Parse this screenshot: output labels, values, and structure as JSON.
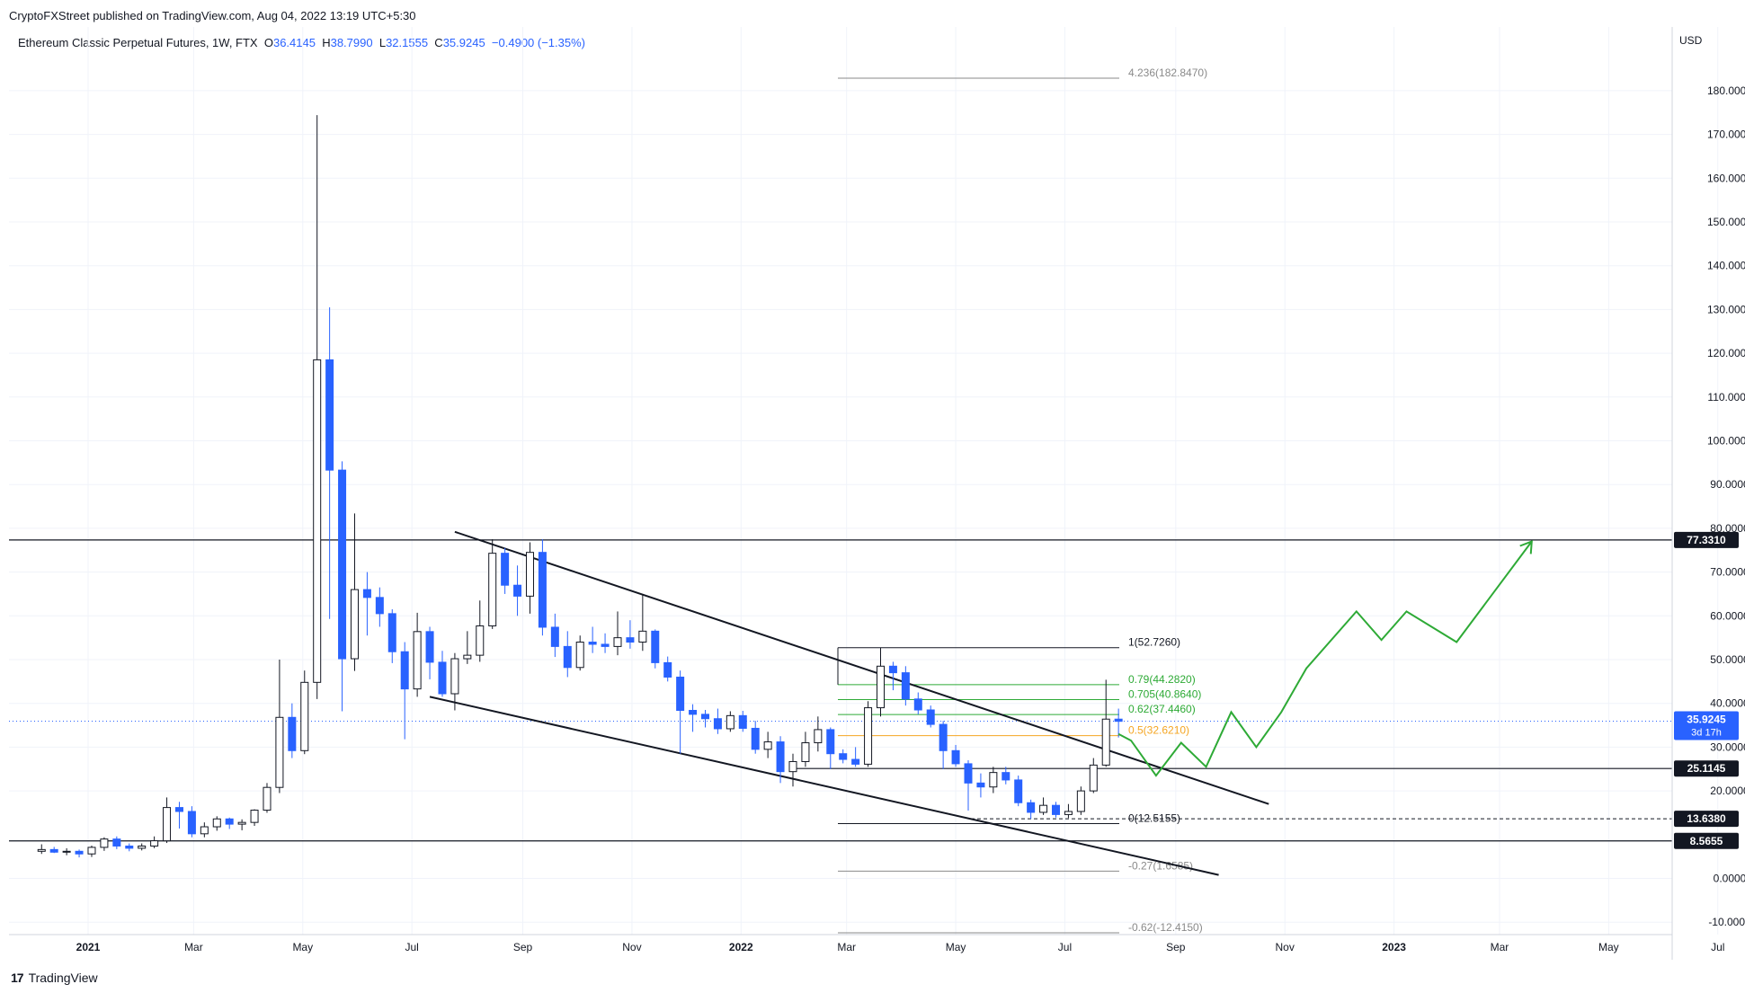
{
  "header": {
    "published": "CryptoFXStreet published on TradingView.com, Aug 04, 2022 13:19 UTC+5:30",
    "symbol": "Ethereum Classic Perpetual Futures, 1W, FTX",
    "open_label": "O",
    "open": "36.4145",
    "high_label": "H",
    "high": "38.7990",
    "low_label": "L",
    "low": "32.1555",
    "close_label": "C",
    "close": "35.9245",
    "change": "−0.4900 (−1.35%)",
    "currency": "USD"
  },
  "footer": {
    "brand": "TradingView"
  },
  "colors": {
    "up": "#ffffff",
    "down": "#2962ff",
    "border": "#131722",
    "projection": "#2eaa36",
    "fib_gold": "#f5a623",
    "fib_green": "#2eaa36",
    "fib_gray": "#8a8a8a"
  },
  "chart_data": {
    "type": "candlestick",
    "title": "",
    "timeframe": "1W",
    "yaxis": {
      "ticks": [
        "-10.0000",
        "0.0000",
        "20.0000",
        "30.0000",
        "40.0000",
        "50.0000",
        "60.0000",
        "70.0000",
        "80.0000",
        "90.0000",
        "100.0000",
        "110.0000",
        "120.0000",
        "130.0000",
        "140.0000",
        "150.0000",
        "160.0000",
        "170.0000",
        "180.0000"
      ],
      "tick_values": [
        -10,
        0,
        20,
        30,
        40,
        50,
        60,
        70,
        80,
        90,
        100,
        110,
        120,
        130,
        140,
        150,
        160,
        170,
        180
      ],
      "range": [
        -12,
        190
      ]
    },
    "xaxis": {
      "ticks": [
        "2021",
        "Mar",
        "May",
        "Jul",
        "Sep",
        "Nov",
        "2022",
        "Mar",
        "May",
        "Jul",
        "Sep",
        "Nov",
        "2023",
        "Mar",
        "May",
        "Jul"
      ],
      "tick_dates": [
        "2021-01-01",
        "2021-03-01",
        "2021-05-01",
        "2021-07-01",
        "2021-09-01",
        "2021-11-01",
        "2022-01-01",
        "2022-03-01",
        "2022-05-01",
        "2022-07-01",
        "2022-09-01",
        "2022-11-01",
        "2023-01-01",
        "2023-03-01",
        "2023-05-01",
        "2023-07-01"
      ],
      "range": [
        "2020-11-28",
        "2023-08-12"
      ]
    },
    "candles": [
      {
        "date": "2020-12-06",
        "o": 6.2,
        "h": 7.8,
        "l": 5.6,
        "c": 6.6
      },
      {
        "date": "2020-12-13",
        "o": 6.6,
        "h": 7.2,
        "l": 5.8,
        "c": 6.0
      },
      {
        "date": "2020-12-20",
        "o": 6.0,
        "h": 6.9,
        "l": 5.3,
        "c": 6.2
      },
      {
        "date": "2020-12-27",
        "o": 6.2,
        "h": 6.6,
        "l": 4.8,
        "c": 5.6
      },
      {
        "date": "2021-01-03",
        "o": 5.6,
        "h": 7.5,
        "l": 4.9,
        "c": 7.1
      },
      {
        "date": "2021-01-10",
        "o": 7.1,
        "h": 9.4,
        "l": 6.3,
        "c": 9.0
      },
      {
        "date": "2021-01-17",
        "o": 9.0,
        "h": 9.6,
        "l": 6.7,
        "c": 7.4
      },
      {
        "date": "2021-01-24",
        "o": 7.4,
        "h": 8.0,
        "l": 6.2,
        "c": 6.9
      },
      {
        "date": "2021-01-31",
        "o": 6.9,
        "h": 8.0,
        "l": 6.4,
        "c": 7.4
      },
      {
        "date": "2021-02-07",
        "o": 7.4,
        "h": 9.6,
        "l": 6.9,
        "c": 8.6
      },
      {
        "date": "2021-02-14",
        "o": 8.6,
        "h": 18.5,
        "l": 8.1,
        "c": 16.2
      },
      {
        "date": "2021-02-21",
        "o": 16.2,
        "h": 17.5,
        "l": 11.4,
        "c": 15.3
      },
      {
        "date": "2021-02-28",
        "o": 15.3,
        "h": 16.5,
        "l": 9.4,
        "c": 10.2
      },
      {
        "date": "2021-03-07",
        "o": 10.2,
        "h": 12.8,
        "l": 9.4,
        "c": 11.8
      },
      {
        "date": "2021-03-14",
        "o": 11.8,
        "h": 14.2,
        "l": 10.9,
        "c": 13.6
      },
      {
        "date": "2021-03-21",
        "o": 13.6,
        "h": 13.9,
        "l": 11.3,
        "c": 12.4
      },
      {
        "date": "2021-03-28",
        "o": 12.4,
        "h": 13.5,
        "l": 11.0,
        "c": 12.8
      },
      {
        "date": "2021-04-04",
        "o": 12.8,
        "h": 15.8,
        "l": 12.0,
        "c": 15.6
      },
      {
        "date": "2021-04-11",
        "o": 15.6,
        "h": 21.8,
        "l": 15.0,
        "c": 20.8
      },
      {
        "date": "2021-04-18",
        "o": 20.8,
        "h": 50.0,
        "l": 19.5,
        "c": 36.8
      },
      {
        "date": "2021-04-25",
        "o": 36.8,
        "h": 40.0,
        "l": 27.5,
        "c": 29.2
      },
      {
        "date": "2021-05-02",
        "o": 29.2,
        "h": 47.5,
        "l": 28.4,
        "c": 44.8
      },
      {
        "date": "2021-05-09",
        "o": 44.8,
        "h": 174.4,
        "l": 41.0,
        "c": 118.5
      },
      {
        "date": "2021-05-16",
        "o": 118.5,
        "h": 130.5,
        "l": 59.3,
        "c": 93.3
      },
      {
        "date": "2021-05-23",
        "o": 93.3,
        "h": 95.3,
        "l": 38.2,
        "c": 50.2
      },
      {
        "date": "2021-05-30",
        "o": 50.2,
        "h": 83.4,
        "l": 47.4,
        "c": 66.0
      },
      {
        "date": "2021-06-06",
        "o": 66.0,
        "h": 70.0,
        "l": 55.5,
        "c": 64.2
      },
      {
        "date": "2021-06-13",
        "o": 64.2,
        "h": 66.5,
        "l": 57.5,
        "c": 60.5
      },
      {
        "date": "2021-06-20",
        "o": 60.5,
        "h": 61.5,
        "l": 49.2,
        "c": 51.8
      },
      {
        "date": "2021-06-27",
        "o": 51.8,
        "h": 54.0,
        "l": 31.8,
        "c": 43.3
      },
      {
        "date": "2021-07-04",
        "o": 43.3,
        "h": 60.7,
        "l": 41.5,
        "c": 56.4
      },
      {
        "date": "2021-07-11",
        "o": 56.4,
        "h": 57.5,
        "l": 45.5,
        "c": 49.4
      },
      {
        "date": "2021-07-18",
        "o": 49.4,
        "h": 52.0,
        "l": 41.5,
        "c": 42.2
      },
      {
        "date": "2021-07-25",
        "o": 42.2,
        "h": 51.5,
        "l": 38.4,
        "c": 50.2
      },
      {
        "date": "2021-08-01",
        "o": 50.2,
        "h": 56.5,
        "l": 49.0,
        "c": 51.0
      },
      {
        "date": "2021-08-08",
        "o": 51.0,
        "h": 63.5,
        "l": 49.5,
        "c": 57.7
      },
      {
        "date": "2021-08-15",
        "o": 57.7,
        "h": 77.5,
        "l": 57.0,
        "c": 74.3
      },
      {
        "date": "2021-08-22",
        "o": 74.3,
        "h": 75.5,
        "l": 65.0,
        "c": 67.0
      },
      {
        "date": "2021-08-29",
        "o": 67.0,
        "h": 71.5,
        "l": 60.0,
        "c": 64.5
      },
      {
        "date": "2021-09-05",
        "o": 64.5,
        "h": 76.8,
        "l": 60.5,
        "c": 74.5
      },
      {
        "date": "2021-09-12",
        "o": 74.5,
        "h": 77.5,
        "l": 55.5,
        "c": 57.4
      },
      {
        "date": "2021-09-19",
        "o": 57.4,
        "h": 60.5,
        "l": 50.6,
        "c": 53.0
      },
      {
        "date": "2021-09-26",
        "o": 53.0,
        "h": 56.5,
        "l": 46.0,
        "c": 48.2
      },
      {
        "date": "2021-10-03",
        "o": 48.2,
        "h": 55.5,
        "l": 47.5,
        "c": 54.0
      },
      {
        "date": "2021-10-10",
        "o": 54.0,
        "h": 57.5,
        "l": 51.5,
        "c": 53.5
      },
      {
        "date": "2021-10-17",
        "o": 53.5,
        "h": 56.0,
        "l": 51.5,
        "c": 53.0
      },
      {
        "date": "2021-10-24",
        "o": 53.0,
        "h": 61.0,
        "l": 51.0,
        "c": 55.0
      },
      {
        "date": "2021-10-31",
        "o": 55.0,
        "h": 59.0,
        "l": 52.5,
        "c": 54.0
      },
      {
        "date": "2021-11-07",
        "o": 54.0,
        "h": 65.0,
        "l": 52.0,
        "c": 56.5
      },
      {
        "date": "2021-11-14",
        "o": 56.5,
        "h": 56.9,
        "l": 48.0,
        "c": 49.3
      },
      {
        "date": "2021-11-21",
        "o": 49.3,
        "h": 50.7,
        "l": 45.0,
        "c": 46.0
      },
      {
        "date": "2021-11-28",
        "o": 46.0,
        "h": 47.5,
        "l": 28.5,
        "c": 38.4
      },
      {
        "date": "2021-12-05",
        "o": 38.4,
        "h": 39.8,
        "l": 33.5,
        "c": 37.5
      },
      {
        "date": "2021-12-12",
        "o": 37.5,
        "h": 38.5,
        "l": 34.5,
        "c": 36.5
      },
      {
        "date": "2021-12-19",
        "o": 36.5,
        "h": 38.8,
        "l": 33.0,
        "c": 34.2
      },
      {
        "date": "2021-12-26",
        "o": 34.2,
        "h": 38.2,
        "l": 33.5,
        "c": 37.2
      },
      {
        "date": "2022-01-02",
        "o": 37.2,
        "h": 38.3,
        "l": 33.5,
        "c": 34.3
      },
      {
        "date": "2022-01-09",
        "o": 34.3,
        "h": 36.0,
        "l": 28.5,
        "c": 29.5
      },
      {
        "date": "2022-01-16",
        "o": 29.5,
        "h": 33.5,
        "l": 27.5,
        "c": 31.2
      },
      {
        "date": "2022-01-23",
        "o": 31.2,
        "h": 32.5,
        "l": 21.8,
        "c": 24.4
      },
      {
        "date": "2022-01-30",
        "o": 24.4,
        "h": 28.5,
        "l": 21.0,
        "c": 26.7
      },
      {
        "date": "2022-02-06",
        "o": 26.7,
        "h": 33.5,
        "l": 25.5,
        "c": 31.0
      },
      {
        "date": "2022-02-13",
        "o": 31.0,
        "h": 37.0,
        "l": 29.0,
        "c": 34.0
      },
      {
        "date": "2022-02-20",
        "o": 34.0,
        "h": 34.5,
        "l": 25.0,
        "c": 28.5
      },
      {
        "date": "2022-02-27",
        "o": 28.5,
        "h": 29.5,
        "l": 26.3,
        "c": 27.2
      },
      {
        "date": "2022-03-06",
        "o": 27.2,
        "h": 30.0,
        "l": 25.5,
        "c": 26.1
      },
      {
        "date": "2022-03-13",
        "o": 26.1,
        "h": 40.5,
        "l": 25.5,
        "c": 39.0
      },
      {
        "date": "2022-03-20",
        "o": 39.0,
        "h": 52.7,
        "l": 37.0,
        "c": 48.5
      },
      {
        "date": "2022-03-27",
        "o": 48.5,
        "h": 49.5,
        "l": 43.0,
        "c": 47.0
      },
      {
        "date": "2022-04-03",
        "o": 47.0,
        "h": 48.5,
        "l": 39.5,
        "c": 41.0
      },
      {
        "date": "2022-04-10",
        "o": 41.0,
        "h": 42.5,
        "l": 37.5,
        "c": 38.5
      },
      {
        "date": "2022-04-17",
        "o": 38.5,
        "h": 39.5,
        "l": 34.5,
        "c": 35.2
      },
      {
        "date": "2022-04-24",
        "o": 35.2,
        "h": 36.0,
        "l": 25.0,
        "c": 29.2
      },
      {
        "date": "2022-05-01",
        "o": 29.2,
        "h": 30.5,
        "l": 25.5,
        "c": 26.2
      },
      {
        "date": "2022-05-08",
        "o": 26.2,
        "h": 27.0,
        "l": 15.5,
        "c": 21.8
      },
      {
        "date": "2022-05-15",
        "o": 21.8,
        "h": 24.0,
        "l": 18.5,
        "c": 20.9
      },
      {
        "date": "2022-05-22",
        "o": 20.9,
        "h": 25.5,
        "l": 19.5,
        "c": 24.2
      },
      {
        "date": "2022-05-29",
        "o": 24.2,
        "h": 25.5,
        "l": 21.5,
        "c": 22.5
      },
      {
        "date": "2022-06-05",
        "o": 22.5,
        "h": 23.5,
        "l": 16.5,
        "c": 17.3
      },
      {
        "date": "2022-06-12",
        "o": 17.3,
        "h": 18.0,
        "l": 13.6,
        "c": 15.1
      },
      {
        "date": "2022-06-19",
        "o": 15.1,
        "h": 18.5,
        "l": 14.5,
        "c": 16.7
      },
      {
        "date": "2022-06-26",
        "o": 16.7,
        "h": 17.5,
        "l": 13.9,
        "c": 14.6
      },
      {
        "date": "2022-07-03",
        "o": 14.6,
        "h": 17.0,
        "l": 13.8,
        "c": 15.3
      },
      {
        "date": "2022-07-10",
        "o": 15.3,
        "h": 21.0,
        "l": 14.5,
        "c": 20.0
      },
      {
        "date": "2022-07-17",
        "o": 20.0,
        "h": 27.5,
        "l": 19.5,
        "c": 25.9
      },
      {
        "date": "2022-07-24",
        "o": 25.9,
        "h": 45.4,
        "l": 25.5,
        "c": 36.4
      },
      {
        "date": "2022-07-31",
        "o": 36.4,
        "h": 38.8,
        "l": 32.2,
        "c": 35.9
      }
    ],
    "price_markers": [
      {
        "label": "77.3310",
        "value": 77.331
      },
      {
        "label": "35.9245",
        "sublabel": "3d 17h",
        "value": 35.9245
      },
      {
        "label": "25.1145",
        "value": 25.1145
      },
      {
        "label": "13.6380",
        "value": 13.638
      },
      {
        "label": "8.5655",
        "value": 8.5655
      }
    ],
    "fib_levels": [
      {
        "label": "4.236(182.8470)",
        "value": 182.847,
        "color": "gray"
      },
      {
        "label": "1(52.7260)",
        "value": 52.726,
        "color": "black"
      },
      {
        "label": "0.79(44.2820)",
        "value": 44.282,
        "color": "green"
      },
      {
        "label": "0.705(40.8640)",
        "value": 40.864,
        "color": "green"
      },
      {
        "label": "0.62(37.4460)",
        "value": 37.446,
        "color": "green"
      },
      {
        "label": "0.5(32.6210)",
        "value": 32.621,
        "color": "gold"
      },
      {
        "label": "0(12.5155)",
        "value": 12.5155,
        "color": "black"
      },
      {
        "label": "-0.27(1.6585)",
        "value": 1.6585,
        "color": "gray"
      },
      {
        "label": "-0.62(-12.4150)",
        "value": -12.415,
        "color": "gray"
      }
    ],
    "channel": {
      "upper": [
        [
          "2021-07-25",
          79.2
        ],
        [
          "2022-10-23",
          17.0
        ]
      ],
      "lower": [
        [
          "2021-07-11",
          41.5
        ],
        [
          "2022-09-25",
          0.8
        ]
      ]
    },
    "projection": [
      [
        "2022-07-31",
        33.0
      ],
      [
        "2022-08-07",
        31.5
      ],
      [
        "2022-08-21",
        23.5
      ],
      [
        "2022-09-04",
        31.0
      ],
      [
        "2022-09-18",
        25.5
      ],
      [
        "2022-10-02",
        38.0
      ],
      [
        "2022-10-16",
        30.0
      ],
      [
        "2022-10-30",
        38.0
      ],
      [
        "2022-11-13",
        48.0
      ],
      [
        "2022-12-11",
        61.0
      ],
      [
        "2022-12-25",
        54.5
      ],
      [
        "2023-01-08",
        61.0
      ],
      [
        "2023-02-05",
        54.0
      ],
      [
        "2023-03-19",
        77.0
      ]
    ]
  }
}
